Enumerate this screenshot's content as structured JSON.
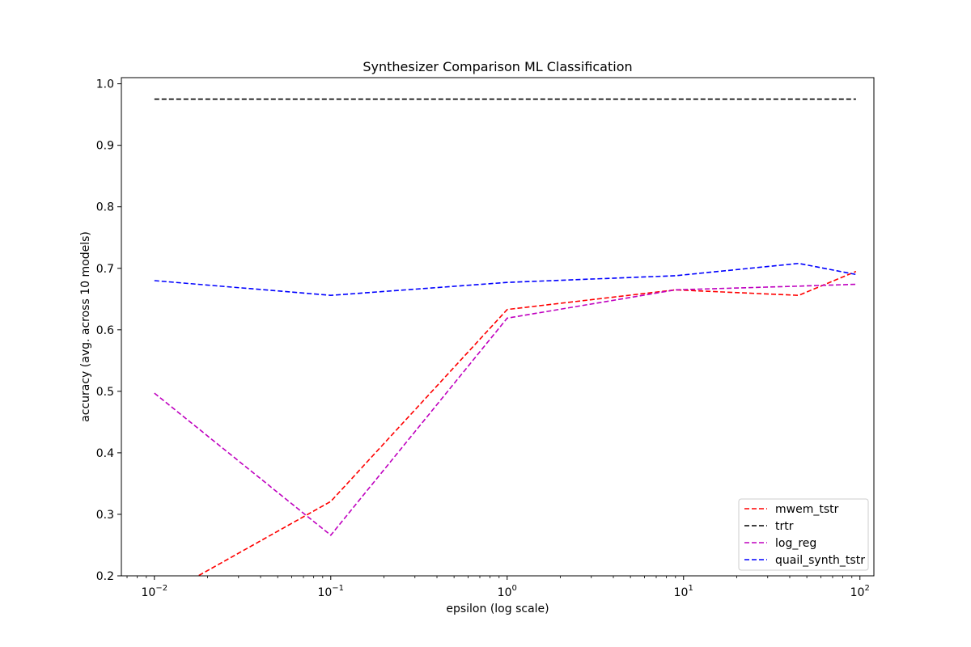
{
  "chart_data": {
    "type": "line",
    "title": "Synthesizer Comparison ML Classification",
    "xlabel": "epsilon (log scale)",
    "ylabel": "accuracy (avg. across 10 models)",
    "xscale": "log",
    "xlim": [
      0.0065,
      120
    ],
    "ylim": [
      0.2,
      1.01
    ],
    "x_ticks": [
      0.01,
      0.1,
      1,
      10,
      100
    ],
    "x_tick_labels": [
      {
        "base": "10",
        "exp": "−2"
      },
      {
        "base": "10",
        "exp": "−1"
      },
      {
        "base": "10",
        "exp": "0"
      },
      {
        "base": "10",
        "exp": "1"
      },
      {
        "base": "10",
        "exp": "2"
      }
    ],
    "y_ticks": [
      0.2,
      0.3,
      0.4,
      0.5,
      0.6,
      0.7,
      0.8,
      0.9,
      1.0
    ],
    "y_tick_labels": [
      "0.2",
      "0.3",
      "0.4",
      "0.5",
      "0.6",
      "0.7",
      "0.8",
      "0.9",
      "1.0"
    ],
    "grid": false,
    "legend_position": "bottom-right",
    "line_style": "dashed",
    "series": [
      {
        "name": "mwem_tstr",
        "color": "#ff0000",
        "x": [
          0.01,
          0.1,
          1,
          9,
          45,
          95
        ],
        "y": [
          0.16,
          0.321,
          0.633,
          0.665,
          0.656,
          0.695
        ]
      },
      {
        "name": "trtr",
        "color": "#000000",
        "x": [
          0.01,
          0.1,
          1,
          9,
          45,
          95
        ],
        "y": [
          0.975,
          0.975,
          0.975,
          0.975,
          0.975,
          0.975
        ]
      },
      {
        "name": "log_reg",
        "color": "#bf00bf",
        "x": [
          0.01,
          0.1,
          1,
          9,
          45,
          95
        ],
        "y": [
          0.497,
          0.266,
          0.619,
          0.665,
          0.671,
          0.674
        ]
      },
      {
        "name": "quail_synth_tstr",
        "color": "#0000ff",
        "x": [
          0.01,
          0.1,
          1,
          9,
          45,
          95
        ],
        "y": [
          0.68,
          0.656,
          0.677,
          0.688,
          0.708,
          0.69
        ]
      }
    ]
  }
}
